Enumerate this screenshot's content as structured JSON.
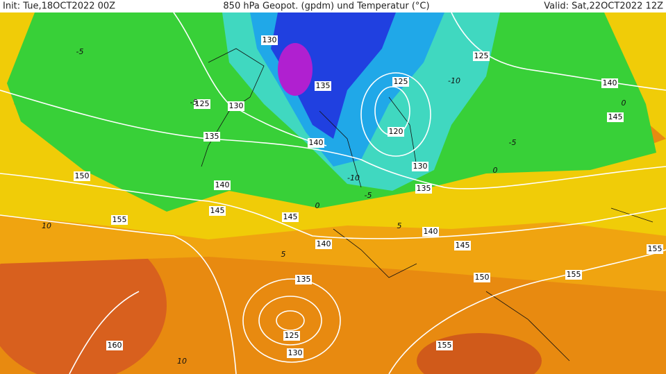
{
  "header": {
    "init": "Init: Tue,18OCT2022 00Z",
    "title": "850 hPa Geopot. (gpdm) und Temperatur (°C)",
    "valid": "Valid: Sat,22OCT2022 12Z"
  },
  "geopotential_labels": [
    130,
    135,
    125,
    130,
    135,
    140,
    125,
    120,
    130,
    135,
    125,
    140,
    145,
    150,
    140,
    145,
    145,
    155,
    140,
    140,
    145,
    155,
    150,
    155,
    135,
    125,
    130,
    160,
    155
  ],
  "temperature_labels": [
    -5,
    -5,
    -10,
    -5,
    0,
    10,
    5,
    5,
    10,
    -5,
    0,
    0,
    -10
  ]
}
